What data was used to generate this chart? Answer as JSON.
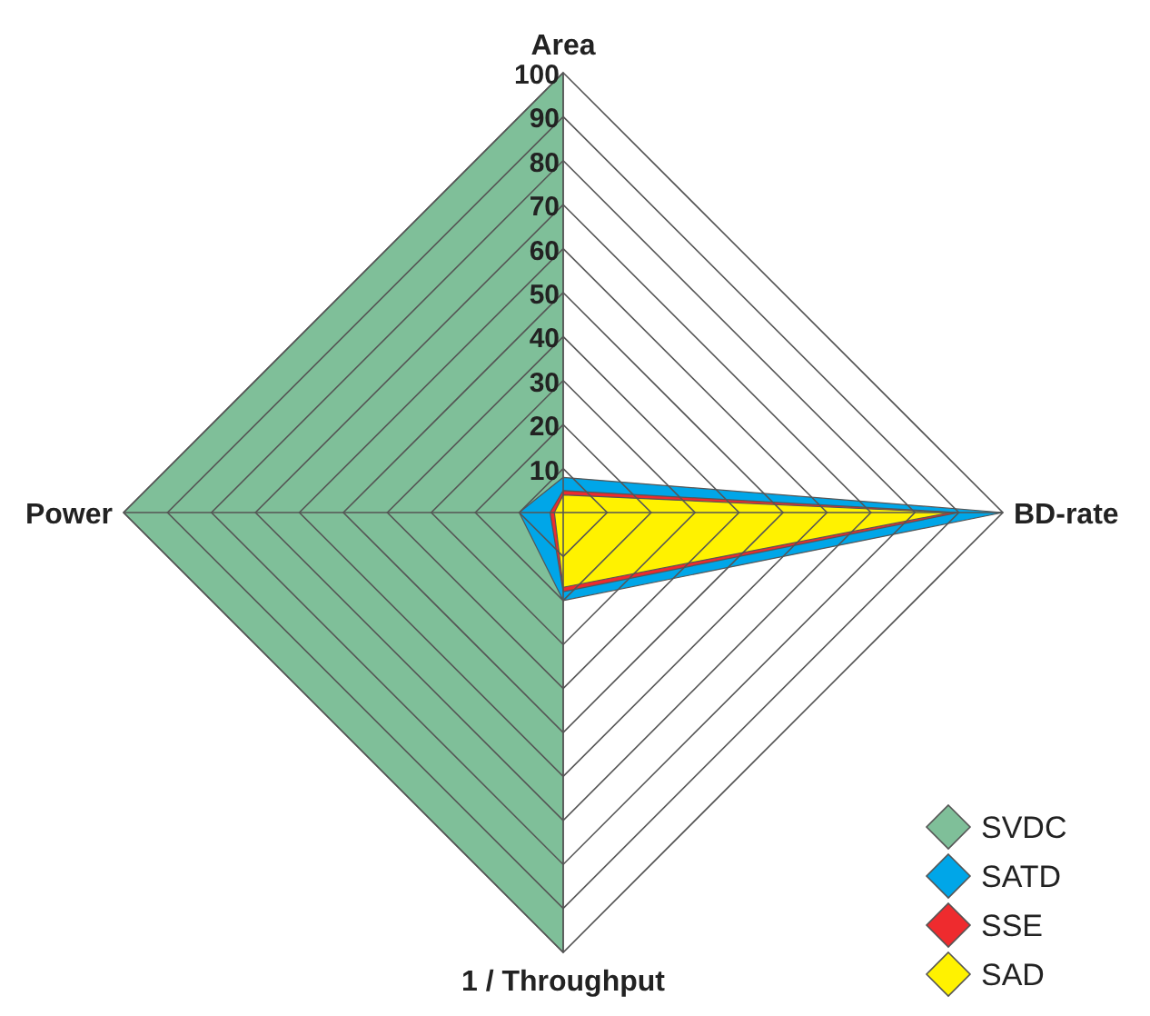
{
  "chart_data": {
    "type": "radar",
    "categories": [
      "Area",
      "BD-rate",
      "1 / Throughput",
      "Power"
    ],
    "ylim": [
      0,
      100
    ],
    "yticks": [
      10,
      20,
      30,
      40,
      50,
      60,
      70,
      80,
      90,
      100
    ],
    "grid": true,
    "legend": "bottom right",
    "series": [
      {
        "name": "SVDC",
        "color": "#7fbf99",
        "values": [
          100,
          0,
          100,
          100
        ]
      },
      {
        "name": "SATD",
        "color": "#00a6e8",
        "values": [
          8,
          100,
          20,
          10
        ]
      },
      {
        "name": "SSE",
        "color": "#ee2b2e",
        "values": [
          5,
          90,
          18,
          3
        ]
      },
      {
        "name": "SAD",
        "color": "#fff200",
        "values": [
          4,
          88,
          17,
          2
        ]
      }
    ]
  }
}
